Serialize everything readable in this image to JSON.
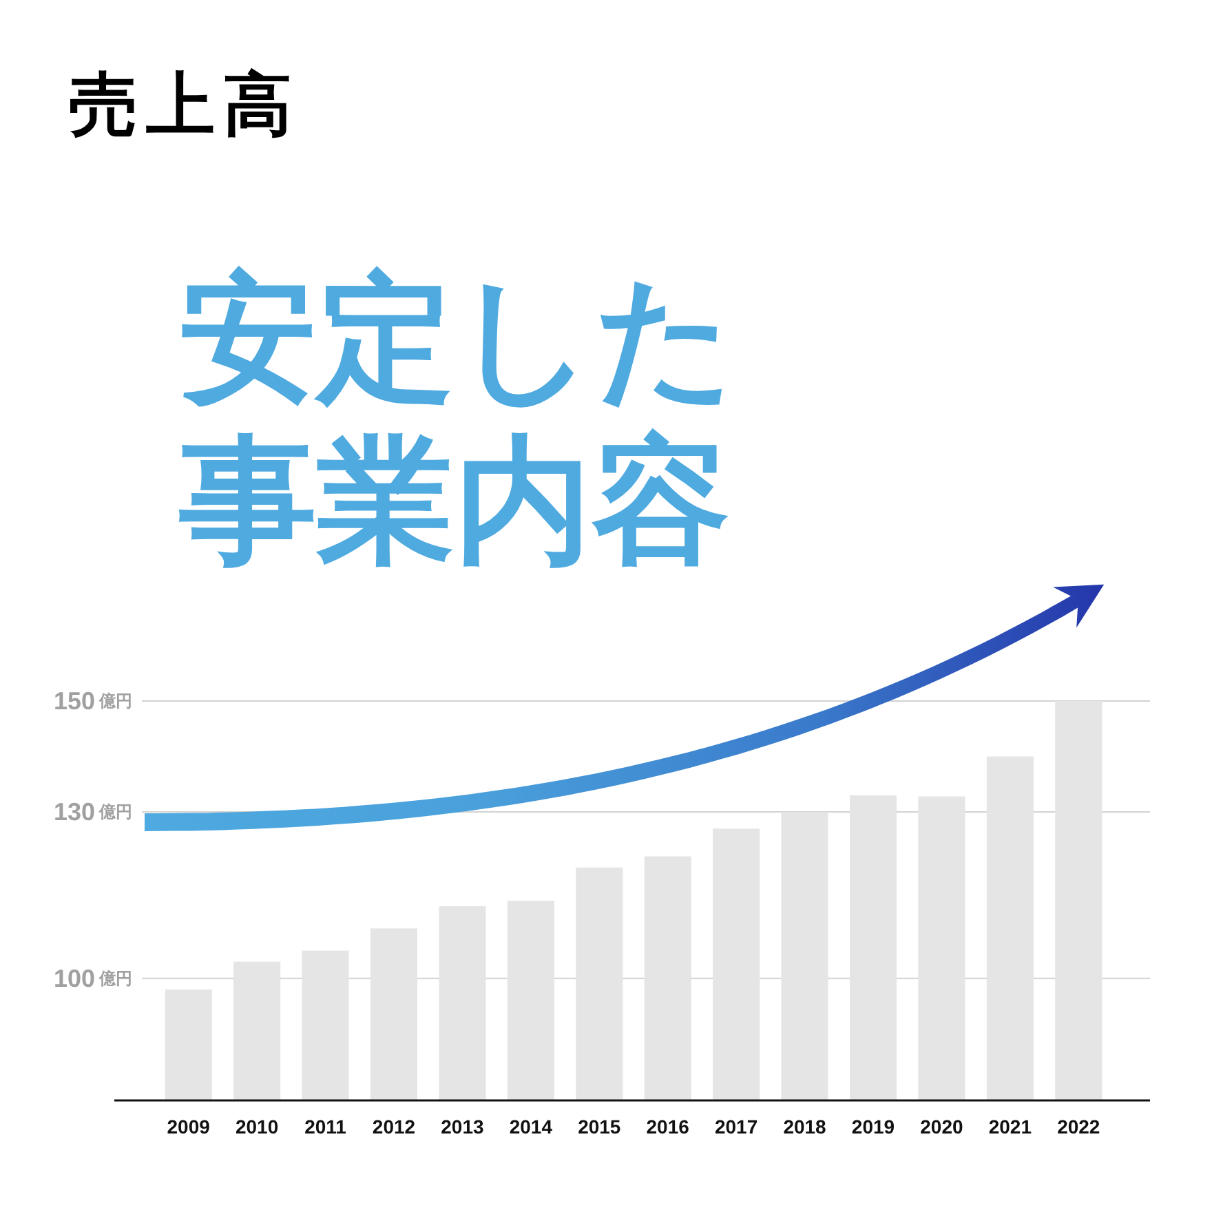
{
  "chart_data": {
    "type": "bar",
    "title": "売上高",
    "subtitle": "安定した事業内容",
    "categories": [
      "2009",
      "2010",
      "2011",
      "2012",
      "2013",
      "2014",
      "2015",
      "2016",
      "2017",
      "2018",
      "2019",
      "2020",
      "2021",
      "2022"
    ],
    "values": [
      98,
      103,
      105,
      109,
      113,
      114,
      120,
      122,
      127,
      130,
      133,
      132.8,
      140,
      150
    ],
    "color": "#e5e5e5",
    "ylim": [
      78,
      150
    ],
    "yticks": [
      {
        "value": 100,
        "label": "100億円"
      },
      {
        "value": 130,
        "label": "130億円"
      },
      {
        "value": 150,
        "label": "150億円"
      }
    ],
    "grid": "y"
  }
}
